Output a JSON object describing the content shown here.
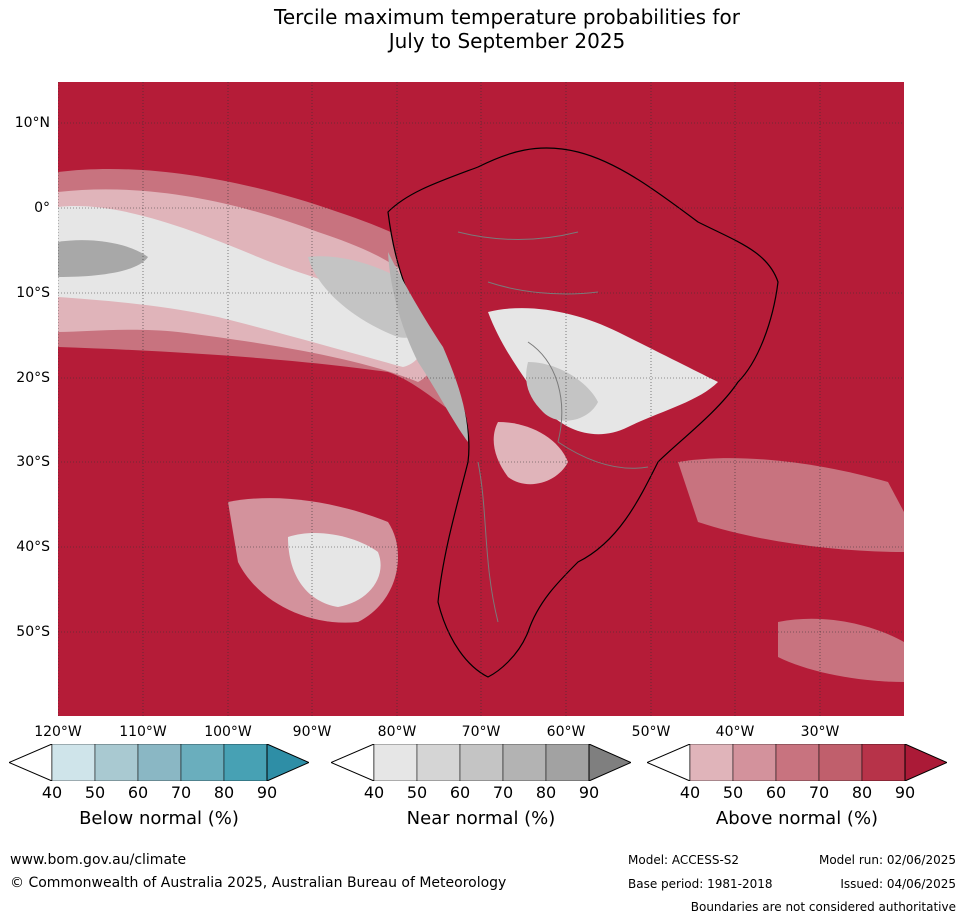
{
  "title_line1": "Tercile maximum temperature probabilities for",
  "title_line2": "July to September 2025",
  "latitude_labels": [
    "10°N",
    "0°",
    "10°S",
    "20°S",
    "30°S",
    "40°S",
    "50°S"
  ],
  "longitude_labels": [
    "120°W",
    "110°W",
    "100°W",
    "90°W",
    "80°W",
    "70°W",
    "60°W",
    "50°W",
    "40°W",
    "30°W"
  ],
  "colorbars": [
    {
      "label": "Below normal (%)",
      "ticks": [
        "40",
        "50",
        "60",
        "70",
        "80",
        "90"
      ],
      "colors": [
        "#ffffff",
        "#cfe4ea",
        "#a9c9d1",
        "#8ab7c4",
        "#6aaebd",
        "#47a1b4",
        "#2e8ea6"
      ]
    },
    {
      "label": "Near normal (%)",
      "ticks": [
        "40",
        "50",
        "60",
        "70",
        "80",
        "90"
      ],
      "colors": [
        "#ffffff",
        "#e6e6e6",
        "#d5d5d5",
        "#c4c4c4",
        "#b3b3b3",
        "#a2a2a2",
        "#7f7f7f"
      ]
    },
    {
      "label": "Above normal (%)",
      "ticks": [
        "40",
        "50",
        "60",
        "70",
        "80",
        "90"
      ],
      "colors": [
        "#ffffff",
        "#e0b4ba",
        "#d3929c",
        "#c8737f",
        "#c05f6c",
        "#b73349",
        "#ab1a37"
      ]
    }
  ],
  "footer": {
    "website": "www.bom.gov.au/climate",
    "copyright": "© Commonwealth of Australia 2025, Australian Bureau of Meteorology",
    "model": "Model: ACCESS-S2",
    "base_period": "Base period: 1981-2018",
    "model_run": "Model run: 02/06/2025",
    "issued": "Issued: 04/06/2025",
    "disclaimer": "Boundaries are not considered authoritative"
  }
}
